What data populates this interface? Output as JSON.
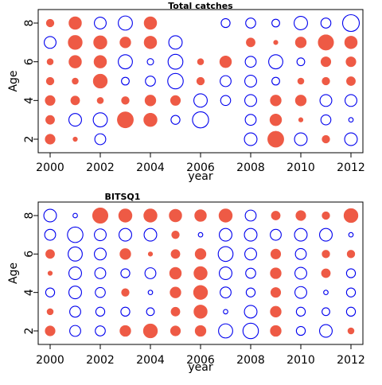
{
  "colors": {
    "positive_fill": "#ee5a45",
    "negative_stroke": "#0000ee",
    "axis": "#000000",
    "background": "#ffffff"
  },
  "chart_data": [
    {
      "type": "scatter",
      "subtype": "bubble-residuals",
      "title": "Total catches",
      "xlabel": "year",
      "ylabel": "Age",
      "xlim": [
        2000,
        2012
      ],
      "ylim": [
        2,
        8
      ],
      "x_ticks": [
        2000,
        2002,
        2004,
        2006,
        2008,
        2010,
        2012
      ],
      "y_ticks": [
        2,
        4,
        6,
        8
      ],
      "grid": false,
      "legend": "none",
      "years": [
        2000,
        2001,
        2002,
        2003,
        2004,
        2005,
        2006,
        2007,
        2008,
        2009,
        2010,
        2011,
        2012
      ],
      "ages": [
        2,
        3,
        4,
        5,
        6,
        7,
        8
      ],
      "residuals": {
        "8": [
          0.3,
          0.8,
          -0.7,
          -1.0,
          0.8,
          null,
          null,
          -0.4,
          -0.5,
          -0.3,
          -0.9,
          -0.5,
          -1.4
        ],
        "7": [
          -0.7,
          1.0,
          0.9,
          0.6,
          0.8,
          -0.9,
          null,
          null,
          0.4,
          0.1,
          0.6,
          1.2,
          0.8
        ],
        "6": [
          0.2,
          0.8,
          0.8,
          -1.0,
          -0.2,
          -1.1,
          0.2,
          0.7,
          -0.6,
          -1.0,
          -0.3,
          0.5,
          0.5
        ],
        "5": [
          0.3,
          0.2,
          1.0,
          -0.3,
          -0.5,
          -1.2,
          0.3,
          -0.6,
          -0.7,
          -0.3,
          0.2,
          0.3,
          0.4
        ],
        "4": [
          0.5,
          0.4,
          0.2,
          0.3,
          0.6,
          0.5,
          -0.9,
          -0.5,
          -0.7,
          0.6,
          0.6,
          -0.7,
          -0.7
        ],
        "3": [
          0.4,
          -0.8,
          -1.0,
          1.3,
          0.9,
          -0.4,
          -1.3,
          null,
          -0.6,
          0.7,
          0.1,
          -0.5,
          -0.1
        ],
        "2": [
          0.5,
          0.1,
          -0.6,
          null,
          null,
          null,
          null,
          null,
          -0.8,
          1.3,
          -0.8,
          0.3,
          -0.8
        ]
      }
    },
    {
      "type": "scatter",
      "subtype": "bubble-residuals",
      "title": "BITSQ1",
      "xlabel": "year",
      "ylabel": "Age",
      "xlim": [
        2000,
        2012
      ],
      "ylim": [
        2,
        8
      ],
      "x_ticks": [
        2000,
        2002,
        2004,
        2006,
        2008,
        2010,
        2012
      ],
      "y_ticks": [
        2,
        4,
        6,
        8
      ],
      "grid": false,
      "legend": "none",
      "years": [
        2000,
        2001,
        2002,
        2003,
        2004,
        2005,
        2006,
        2007,
        2008,
        2009,
        2010,
        2011,
        2012
      ],
      "ages": [
        2,
        3,
        4,
        5,
        6,
        7,
        8
      ],
      "residuals": {
        "8": [
          -0.8,
          -0.1,
          1.2,
          0.9,
          0.9,
          0.8,
          0.7,
          0.9,
          -0.6,
          0.4,
          0.5,
          0.3,
          1.0
        ],
        "7": [
          -0.6,
          -1.2,
          -0.7,
          -0.8,
          -0.8,
          0.3,
          -0.1,
          -0.8,
          -0.8,
          -0.6,
          -0.8,
          -0.8,
          -0.1
        ],
        "6": [
          0.4,
          -1.0,
          -0.7,
          0.6,
          0.1,
          0.4,
          0.6,
          -1.1,
          -0.7,
          0.5,
          -0.6,
          0.3,
          0.3
        ],
        "5": [
          0.1,
          -0.8,
          -0.6,
          -0.4,
          -0.6,
          0.7,
          0.9,
          -0.8,
          -0.5,
          0.6,
          -0.7,
          0.4,
          -0.4
        ],
        "4": [
          -0.4,
          -0.8,
          -0.5,
          0.3,
          -0.1,
          0.6,
          1.0,
          -0.6,
          -0.4,
          0.5,
          -0.7,
          -0.1,
          -0.4
        ],
        "3": [
          0.2,
          -0.6,
          -0.4,
          -0.4,
          -0.3,
          0.4,
          0.9,
          -0.1,
          -0.8,
          0.6,
          -0.4,
          -0.3,
          -0.4
        ],
        "2": [
          0.5,
          -0.6,
          -0.5,
          0.6,
          1.0,
          0.5,
          0.6,
          -1.0,
          -1.2,
          0.6,
          -0.4,
          -0.8,
          0.2
        ]
      }
    }
  ]
}
